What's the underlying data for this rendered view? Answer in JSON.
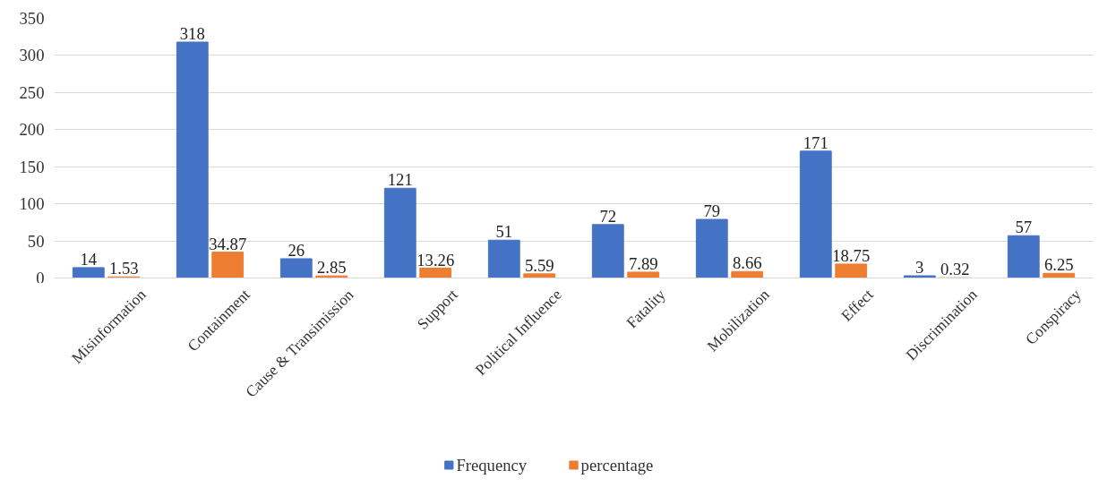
{
  "chart_data": {
    "type": "bar",
    "categories": [
      "Misinformation",
      "Containment",
      "Cause & Transimission",
      "Support",
      "Political Influence",
      "Fatality",
      "Mobilization",
      "Effect",
      "Discrimination",
      "Conspiracy"
    ],
    "series": [
      {
        "name": "Frequency",
        "color": "#4472c4",
        "values": [
          14,
          318,
          26,
          121,
          51,
          72,
          79,
          171,
          3,
          57
        ]
      },
      {
        "name": "percentage",
        "color": "#ed7d31",
        "values": [
          1.53,
          34.87,
          2.85,
          13.26,
          5.59,
          7.89,
          8.66,
          18.75,
          0.32,
          6.25
        ]
      }
    ],
    "ylim": [
      0,
      350
    ],
    "yticks": [
      0,
      50,
      100,
      150,
      200,
      250,
      300,
      350
    ],
    "grid": "y",
    "legend": "bottom",
    "data_labels": true
  }
}
